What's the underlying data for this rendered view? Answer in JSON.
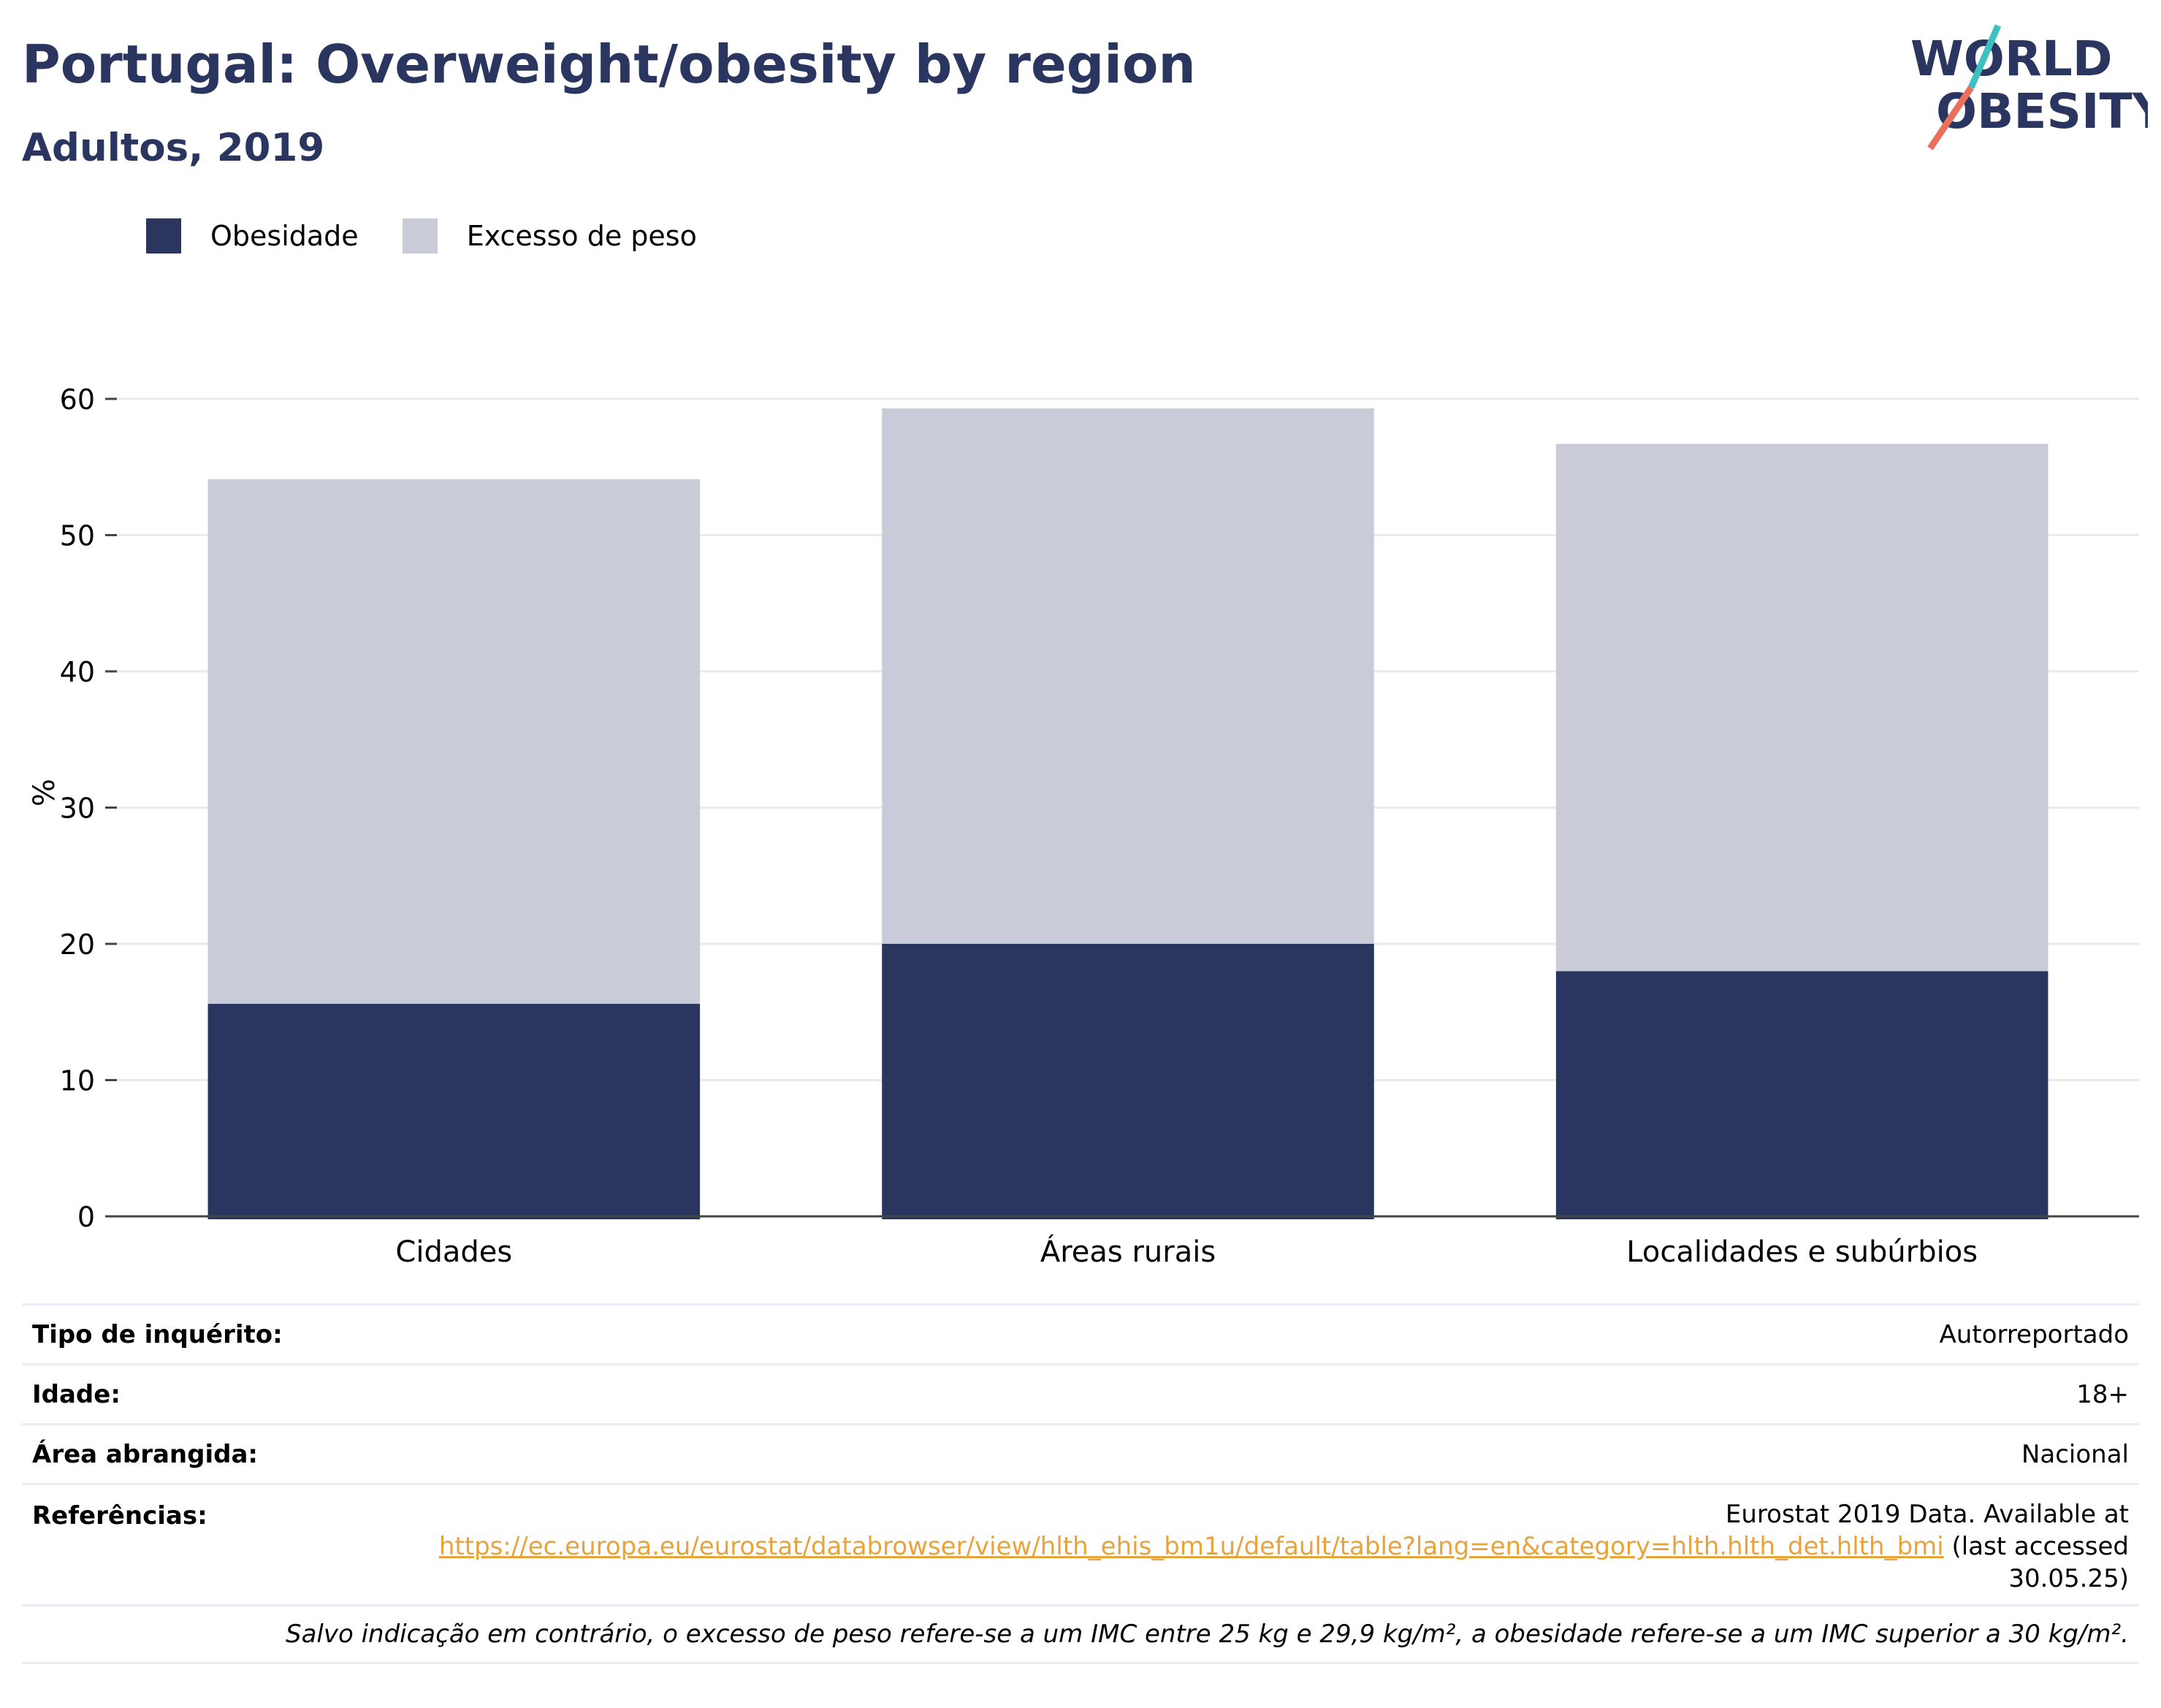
{
  "header": {
    "title": "Portugal: Overweight/obesity by region",
    "subtitle": "Adultos, 2019"
  },
  "logo": {
    "line1": "WORLD",
    "line2": "OBESITY",
    "colors": {
      "navy": "#2a365f",
      "teal": "#3ebfc0",
      "coral": "#e9705a"
    }
  },
  "legend": {
    "items": [
      {
        "label": "Obesidade",
        "color": "#2a365f"
      },
      {
        "label": "Excesso de peso",
        "color": "#c9ccd8"
      }
    ]
  },
  "chart_data": {
    "type": "bar",
    "stacked": true,
    "categories": [
      "Cidades",
      "Áreas rurais",
      "Localidades e subúrbios"
    ],
    "series": [
      {
        "name": "Obesidade",
        "values": [
          15.6,
          20.0,
          18.0
        ],
        "color": "#2a365f"
      },
      {
        "name": "Excesso de peso",
        "values": [
          38.5,
          39.3,
          38.7
        ],
        "color": "#c9ccd8"
      }
    ],
    "ylabel": "%",
    "ylim": [
      0,
      60
    ],
    "yticks": [
      0,
      10,
      20,
      30,
      40,
      50,
      60
    ],
    "grid": true,
    "legend_position": "top-left"
  },
  "info": {
    "survey_type_label": "Tipo de inquérito:",
    "survey_type_value": "Autorreportado",
    "age_label": "Idade:",
    "age_value": "18+",
    "area_label": "Área abrangida:",
    "area_value": "Nacional",
    "references_label": "Referências:",
    "references_text_1": "Eurostat 2019 Data. Available at",
    "references_link": "https://ec.europa.eu/eurostat/databrowser/view/hlth_ehis_bm1u/default/table?lang=en&category=hlth.hlth_det.hlth_bmi",
    "references_text_2": "(last accessed",
    "references_text_3": "30.05.25)",
    "footnote": "Salvo indicação em contrário, o excesso de peso refere-se a um IMC entre 25 kg e 29,9 kg/m², a obesidade refere-se a um IMC superior a 30 kg/m²."
  }
}
